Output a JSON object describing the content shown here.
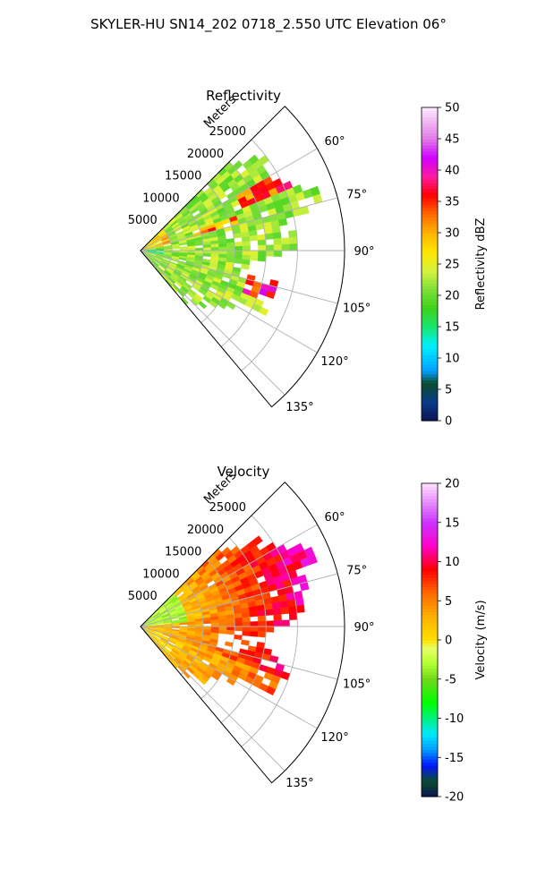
{
  "suptitle": "SKYLER-HU  SN14_202  0718_2.550 UTC Elevation 06°",
  "colors": {
    "refl_stops": [
      [
        0,
        "#0b1452"
      ],
      [
        3,
        "#0a3a8a"
      ],
      [
        6,
        "#0b4d2c"
      ],
      [
        8,
        "#00a0ff"
      ],
      [
        12,
        "#00f0ff"
      ],
      [
        15,
        "#17e66e"
      ],
      [
        18,
        "#3fd11a"
      ],
      [
        21,
        "#7ee03a"
      ],
      [
        24,
        "#d8f23c"
      ],
      [
        27,
        "#ffe600"
      ],
      [
        30,
        "#ffb300"
      ],
      [
        33,
        "#ff6a00"
      ],
      [
        36,
        "#ff0000"
      ],
      [
        39,
        "#ff1aa0"
      ],
      [
        42,
        "#d000ff"
      ],
      [
        45,
        "#e07ae6"
      ],
      [
        50,
        "#ffe8ff"
      ]
    ],
    "vel_stops": [
      [
        -20,
        "#0b1452"
      ],
      [
        -18,
        "#0b4d2c"
      ],
      [
        -16,
        "#0014ff"
      ],
      [
        -14,
        "#009bff"
      ],
      [
        -12,
        "#00e8ff"
      ],
      [
        -10,
        "#00f080"
      ],
      [
        -8,
        "#00ff00"
      ],
      [
        -5,
        "#6fd81a"
      ],
      [
        -3,
        "#b3ff33"
      ],
      [
        -1,
        "#e6ff66"
      ],
      [
        0,
        "#ffe000"
      ],
      [
        3,
        "#ffb000"
      ],
      [
        6,
        "#ff6a00"
      ],
      [
        9,
        "#ff0000"
      ],
      [
        12,
        "#ff00c8"
      ],
      [
        15,
        "#cc33ff"
      ],
      [
        20,
        "#ffe0ff"
      ]
    ]
  },
  "chart_data": [
    {
      "type": "heatmap",
      "subtype": "polar-sector-ppi",
      "title": "Reflectivity",
      "range_label": "Meters",
      "range_ticks": [
        5000,
        10000,
        15000,
        20000,
        25000
      ],
      "range_tick_labels": [
        "5000",
        "10000",
        "15000",
        "20000",
        "25000"
      ],
      "range_max": 32500,
      "azimuth_range_deg": [
        45,
        140
      ],
      "azimuth_ticks": [
        60,
        75,
        90,
        105,
        120,
        135
      ],
      "azimuth_tick_labels": [
        "60°",
        "75°",
        "90°",
        "105°",
        "120°",
        "135°"
      ],
      "grid": true,
      "colorbar": {
        "label": "Reflectivity dBZ",
        "min": 0,
        "max": 50,
        "ticks": [
          0,
          5,
          10,
          15,
          20,
          25,
          30,
          35,
          40,
          45,
          50
        ],
        "tick_labels": [
          "0",
          "5",
          "10",
          "15",
          "20",
          "25",
          "30",
          "35",
          "40",
          "45",
          "50"
        ]
      }
    },
    {
      "type": "heatmap",
      "subtype": "polar-sector-ppi",
      "title": "Velocity",
      "range_label": "Meters",
      "range_ticks": [
        5000,
        10000,
        15000,
        20000,
        25000
      ],
      "range_tick_labels": [
        "5000",
        "10000",
        "15000",
        "20000",
        "25000"
      ],
      "range_max": 32500,
      "azimuth_range_deg": [
        45,
        140
      ],
      "azimuth_ticks": [
        60,
        75,
        90,
        105,
        120,
        135
      ],
      "azimuth_tick_labels": [
        "60°",
        "75°",
        "90°",
        "105°",
        "120°",
        "135°"
      ],
      "grid": true,
      "colorbar": {
        "label": "Velocity (m/s)",
        "min": -20,
        "max": 20,
        "ticks": [
          -20,
          -15,
          -10,
          -5,
          0,
          5,
          10,
          15,
          20
        ],
        "tick_labels": [
          "-20",
          "-15",
          "-10",
          "-5",
          "0",
          "5",
          "10",
          "15",
          "20"
        ]
      }
    }
  ]
}
